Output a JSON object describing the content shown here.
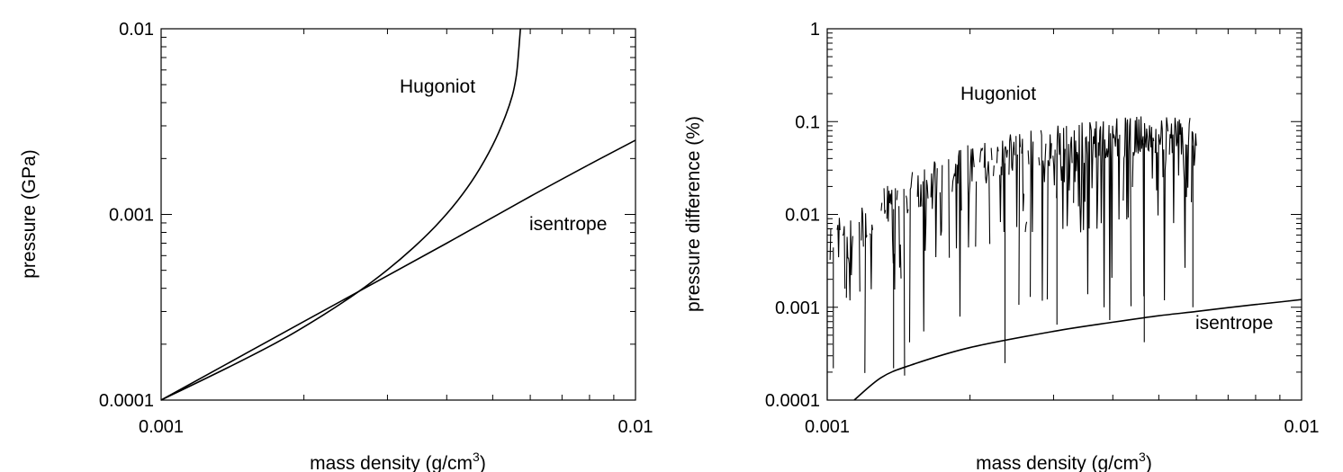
{
  "chart_data": [
    {
      "type": "line",
      "xlabel": "mass density (g/cm",
      "xlabel_sup": "3",
      "xlabel_close": ")",
      "ylabel": "pressure (GPa)",
      "xscale": "log",
      "yscale": "log",
      "xlim": [
        0.001,
        0.01
      ],
      "ylim": [
        0.0001,
        0.01
      ],
      "x_ticks": [
        0.001,
        0.01
      ],
      "x_tick_labels": [
        "0.001",
        "0.01"
      ],
      "y_ticks": [
        0.0001,
        0.001,
        0.01
      ],
      "y_tick_labels": [
        "0.0001",
        "0.001",
        "0.01"
      ],
      "series": [
        {
          "name": "Hugoniot",
          "x": [
            0.001,
            0.0014,
            0.0018,
            0.0022,
            0.0026,
            0.003,
            0.0034,
            0.0038,
            0.0042,
            0.0046,
            0.005,
            0.0053,
            0.0055,
            0.0056,
            0.00565,
            0.00572
          ],
          "y": [
            0.0001,
            0.000152,
            0.000212,
            0.000288,
            0.000382,
            0.000503,
            0.000661,
            0.000872,
            0.00117,
            0.00162,
            0.00236,
            0.00331,
            0.00437,
            0.00546,
            0.00668,
            0.01
          ]
        },
        {
          "name": "isentrope",
          "x": [
            0.001,
            0.002,
            0.004,
            0.006,
            0.008,
            0.01
          ],
          "y": [
            0.0001,
            0.000265,
            0.0007,
            0.00125,
            0.00186,
            0.00251
          ]
        }
      ]
    },
    {
      "type": "line",
      "xlabel": "mass density (g/cm",
      "xlabel_sup": "3",
      "xlabel_close": ")",
      "ylabel": "pressure difference (%)",
      "xscale": "log",
      "yscale": "log",
      "xlim": [
        0.001,
        0.01
      ],
      "ylim": [
        0.0001,
        1
      ],
      "x_ticks": [
        0.001,
        0.01
      ],
      "x_tick_labels": [
        "0.001",
        "0.01"
      ],
      "y_ticks": [
        0.0001,
        0.001,
        0.01,
        0.1,
        1
      ],
      "y_tick_labels": [
        "0.0001",
        "0.001",
        "0.01",
        "0.1",
        "1"
      ],
      "series": [
        {
          "name": "Hugoniot",
          "note": "noisy, oscillating between ~0.0002 and ~0.15 percent",
          "x_range": [
            0.001,
            0.006
          ],
          "envelope_top": [
            [
              0.001,
              0.008
            ],
            [
              0.0015,
              0.03
            ],
            [
              0.002,
              0.06
            ],
            [
              0.003,
              0.09
            ],
            [
              0.004,
              0.11
            ],
            [
              0.005,
              0.12
            ],
            [
              0.006,
              0.11
            ]
          ],
          "dips": [
            [
              0.001,
              0.0001
            ],
            [
              0.00103,
              0.00022
            ],
            [
              0.00138,
              0.00022
            ],
            [
              0.00237,
              0.00025
            ],
            [
              0.00305,
              0.00065
            ],
            [
              0.00466,
              0.00042
            ],
            [
              0.0059,
              0.001
            ]
          ]
        },
        {
          "name": "isentrope",
          "x": [
            0.00114,
            0.0013,
            0.0015,
            0.002,
            0.003,
            0.004,
            0.005,
            0.006,
            0.007,
            0.008,
            0.009,
            0.01
          ],
          "y": [
            0.0001,
            0.000175,
            0.000238,
            0.000368,
            0.00055,
            0.00069,
            0.00081,
            0.0009,
            0.00099,
            0.00107,
            0.00114,
            0.00121
          ]
        }
      ]
    }
  ]
}
